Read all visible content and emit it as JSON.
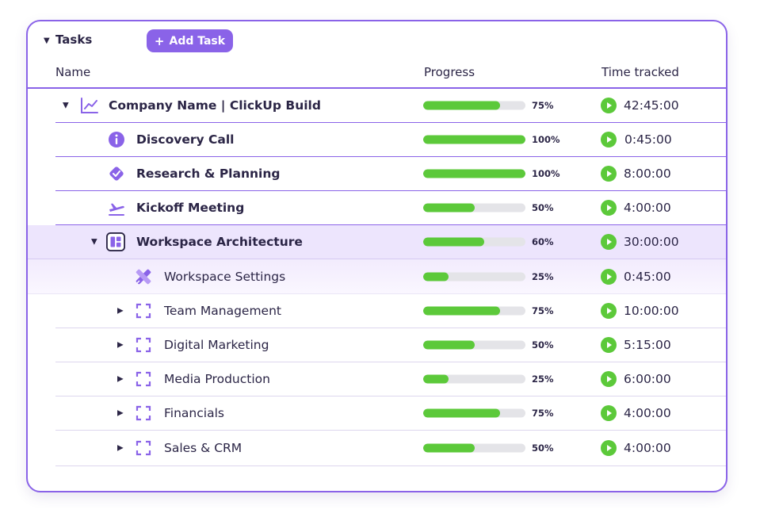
{
  "toolbar": {
    "section_title": "Tasks",
    "add_task_label": "Add Task"
  },
  "columns": {
    "name": "Name",
    "progress": "Progress",
    "time": "Time tracked"
  },
  "colors": {
    "accent": "#8a63e8",
    "progress_fill": "#5cc93a",
    "progress_track": "#e4e4e8",
    "play": "#5cc93a"
  },
  "rows": [
    {
      "label": "Company Name | ClickUp Build",
      "icon": "line-chart-icon",
      "progress": 75,
      "progress_label": "75%",
      "time": "42:45:00"
    },
    {
      "label": "Discovery Call",
      "icon": "info-icon",
      "progress": 100,
      "progress_label": "100%",
      "time": "0:45:00"
    },
    {
      "label": "Research & Planning",
      "icon": "check-badge-icon",
      "progress": 100,
      "progress_label": "100%",
      "time": "8:00:00"
    },
    {
      "label": "Kickoff Meeting",
      "icon": "airplane-takeoff-icon",
      "progress": 50,
      "progress_label": "50%",
      "time": "4:00:00"
    },
    {
      "label": "Workspace Architecture",
      "icon": "layout-grid-icon",
      "progress": 60,
      "progress_label": "60%",
      "time": "30:00:00"
    },
    {
      "label": "Workspace Settings",
      "icon": "pencil-ruler-icon",
      "progress": 25,
      "progress_label": "25%",
      "time": "0:45:00"
    },
    {
      "label": "Team Management",
      "icon": "dashed-frame-icon",
      "progress": 75,
      "progress_label": "75%",
      "time": "10:00:00"
    },
    {
      "label": "Digital Marketing",
      "icon": "dashed-frame-icon",
      "progress": 50,
      "progress_label": "50%",
      "time": "5:15:00"
    },
    {
      "label": "Media Production",
      "icon": "dashed-frame-icon",
      "progress": 25,
      "progress_label": "25%",
      "time": "6:00:00"
    },
    {
      "label": "Financials",
      "icon": "dashed-frame-icon",
      "progress": 75,
      "progress_label": "75%",
      "time": "4:00:00"
    },
    {
      "label": "Sales & CRM",
      "icon": "dashed-frame-icon",
      "progress": 50,
      "progress_label": "50%",
      "time": "4:00:00"
    }
  ]
}
